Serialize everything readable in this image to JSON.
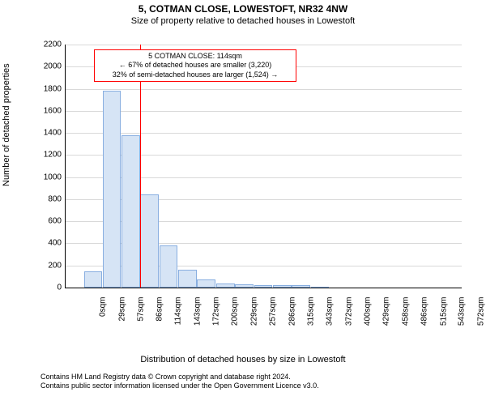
{
  "header": {
    "address": "5, COTMAN CLOSE, LOWESTOFT, NR32 4NW",
    "subtitle": "Size of property relative to detached houses in Lowestoft"
  },
  "chart": {
    "type": "histogram",
    "ylabel": "Number of detached properties",
    "xlabel": "Distribution of detached houses by size in Lowestoft",
    "ylim": [
      0,
      2200
    ],
    "ytick_step": 200,
    "yticks": [
      0,
      200,
      400,
      600,
      800,
      1000,
      1200,
      1400,
      1600,
      1800,
      2000,
      2200
    ],
    "xlim": [
      0,
      600
    ],
    "xticks": [
      0,
      29,
      57,
      86,
      114,
      143,
      172,
      200,
      229,
      257,
      286,
      315,
      343,
      372,
      400,
      429,
      458,
      486,
      515,
      543,
      572
    ],
    "xtick_suffix": "sqm",
    "bars": [
      {
        "x": 29,
        "count": 150
      },
      {
        "x": 57,
        "count": 1780
      },
      {
        "x": 86,
        "count": 1380
      },
      {
        "x": 114,
        "count": 840
      },
      {
        "x": 143,
        "count": 380
      },
      {
        "x": 172,
        "count": 160
      },
      {
        "x": 200,
        "count": 75
      },
      {
        "x": 229,
        "count": 40
      },
      {
        "x": 257,
        "count": 30
      },
      {
        "x": 286,
        "count": 25
      },
      {
        "x": 315,
        "count": 25
      },
      {
        "x": 343,
        "count": 20
      },
      {
        "x": 372,
        "count": 10
      }
    ],
    "bar_step": 29,
    "bar_fill": "#d6e4f5",
    "bar_stroke": "#88aee0",
    "background_color": "#ffffff",
    "grid_color": "#d9d9d9",
    "axis_color": "#000000",
    "marker_line": {
      "x": 114,
      "color": "#ff0000"
    },
    "callout": {
      "border_color": "#ff0000",
      "lines": [
        "5 COTMAN CLOSE: 114sqm",
        "← 67% of detached houses are smaller (3,220)",
        "32% of semi-detached houses are larger (1,524) →"
      ]
    },
    "title_fontsize": 12,
    "subtitle_fontsize": 11,
    "axis_label_fontsize": 11,
    "tick_fontsize": 10,
    "callout_fontsize": 9,
    "footer_fontsize": 9
  },
  "footer": {
    "line1": "Contains HM Land Registry data © Crown copyright and database right 2024.",
    "line2": "Contains public sector information licensed under the Open Government Licence v3.0."
  }
}
